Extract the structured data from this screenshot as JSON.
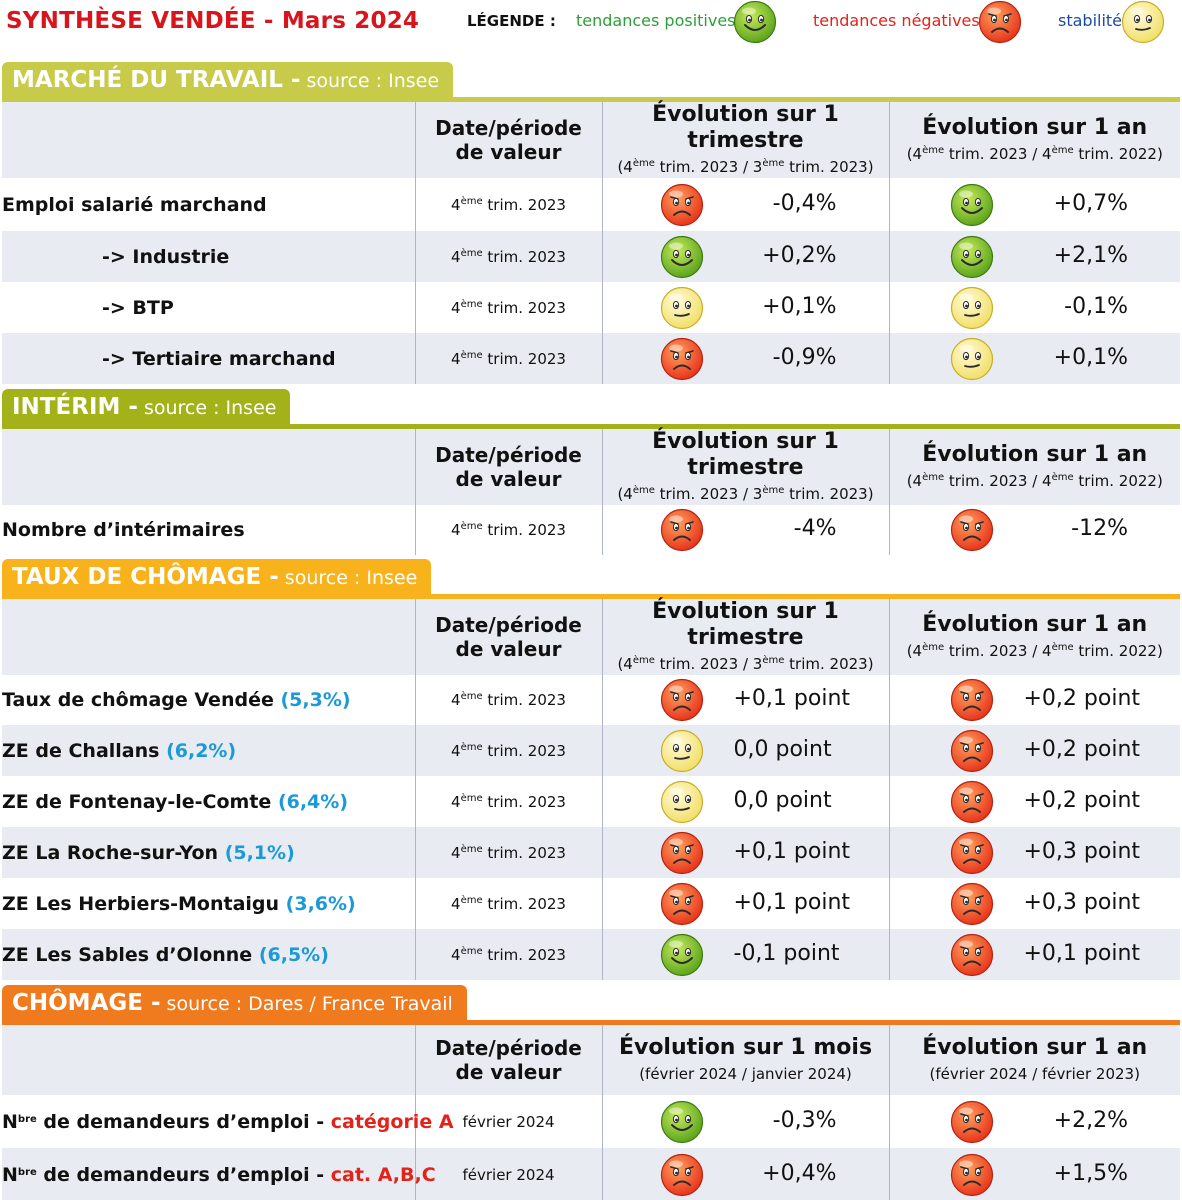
{
  "title": "SYNTHÈSE VENDÉE - Mars 2024",
  "legend": {
    "label": "LÉGENDE :",
    "positive": "tendances positives",
    "negative": "tendances négatives",
    "stable": "stabilité"
  },
  "colors": {
    "title_red": "#d8141c",
    "section_marche": "#c8cb4a",
    "section_interim": "#a4b21a",
    "section_taux": "#f8b21c",
    "section_chomage": "#f07b1e",
    "pct_blue": "#1a9ad6",
    "positive_face": "#7fbf2a",
    "negative_face": "#f05a2c",
    "stable_face": "#f9f0a0"
  },
  "header": {
    "date_l1": "Date/période",
    "date_l2": "de valeur",
    "evo_trim": "Évolution sur 1 trimestre",
    "evo_trim_sub": {
      "a": "(4",
      "b": "ème",
      "c": " trim. 2023 / 3",
      "d": "ème",
      "e": " trim. 2023)"
    },
    "evo_an": "Évolution sur 1 an",
    "evo_an_sub": {
      "a": "(4",
      "b": "ème",
      "c": " trim. 2023 / 4",
      "d": "ème",
      "e": " trim. 2022)"
    },
    "evo_mois": "Évolution sur 1 mois",
    "evo_mois_sub": "(février 2024 / janvier 2024)",
    "evo_an_mois_sub": "(février 2024 / février 2023)"
  },
  "date_q": {
    "num": "4",
    "sup": "ème",
    "rest": " trim. 2023"
  },
  "date_month": "février 2024",
  "sections": {
    "marche": {
      "name": "MARCHÉ DU TRAVAIL -",
      "source": " source : Insee",
      "rows": [
        {
          "label": "Emploi salarié marchand",
          "trend_q": "negative",
          "val_q": "-0,4%",
          "trend_y": "positive",
          "val_y": "+0,7%"
        },
        {
          "label": "-> Industrie",
          "trend_q": "positive",
          "val_q": "+0,2%",
          "trend_y": "positive",
          "val_y": "+2,1%"
        },
        {
          "label": "-> BTP",
          "trend_q": "stable",
          "val_q": "+0,1%",
          "trend_y": "stable",
          "val_y": "-0,1%"
        },
        {
          "label": "-> Tertiaire marchand",
          "trend_q": "negative",
          "val_q": "-0,9%",
          "trend_y": "stable",
          "val_y": "+0,1%"
        }
      ]
    },
    "interim": {
      "name": "INTÉRIM -",
      "source": " source : Insee",
      "rows": [
        {
          "label": "Nombre d’intérimaires",
          "trend_q": "negative",
          "val_q": "-4%",
          "trend_y": "negative",
          "val_y": "-12%"
        }
      ]
    },
    "taux": {
      "name": "TAUX DE CHÔMAGE -",
      "source": " source : Insee",
      "rows": [
        {
          "label": "Taux de chômage Vendée",
          "pct": "(5,3%)",
          "trend_q": "negative",
          "val_q": "+0,1 point",
          "trend_y": "negative",
          "val_y": "+0,2 point"
        },
        {
          "label": "ZE de Challans",
          "pct": "(6,2%)",
          "trend_q": "stable",
          "val_q": "0,0 point",
          "trend_y": "negative",
          "val_y": "+0,2 point"
        },
        {
          "label": "ZE de Fontenay-le-Comte",
          "pct": "(6,4%)",
          "trend_q": "stable",
          "val_q": "0,0 point",
          "trend_y": "negative",
          "val_y": "+0,2 point"
        },
        {
          "label": "ZE La Roche-sur-Yon",
          "pct": "(5,1%)",
          "trend_q": "negative",
          "val_q": "+0,1 point",
          "trend_y": "negative",
          "val_y": "+0,3 point"
        },
        {
          "label": "ZE Les Herbiers-Montaigu",
          "pct": "(3,6%)",
          "trend_q": "negative",
          "val_q": "+0,1 point",
          "trend_y": "negative",
          "val_y": "+0,3 point"
        },
        {
          "label": "ZE Les Sables d’Olonne",
          "pct": "(6,5%)",
          "trend_q": "positive",
          "val_q": "-0,1 point",
          "trend_y": "negative",
          "val_y": "+0,1 point"
        }
      ]
    },
    "chomage": {
      "name": "CHÔMAGE -",
      "source": " source : Dares / France Travail",
      "rows": [
        {
          "n": "N",
          "sup": "bre",
          "label": " de demandeurs d’emploi - ",
          "cat": "catégorie A",
          "trend_q": "positive",
          "val_q": "-0,3%",
          "trend_y": "negative",
          "val_y": "+2,2%"
        },
        {
          "n": "N",
          "sup": "bre",
          "label": " de demandeurs d’emploi - ",
          "cat": "cat. A,B,C",
          "trend_q": "negative",
          "val_q": "+0,4%",
          "trend_y": "negative",
          "val_y": "+1,5%"
        }
      ]
    }
  }
}
